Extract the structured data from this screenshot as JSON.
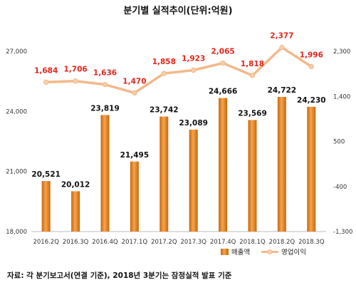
{
  "chart_data": {
    "type": "bar+line",
    "title": "분기별 실적추이(단위:억원)",
    "categories": [
      "2016.2Q",
      "2016.3Q",
      "2016.4Q",
      "2017.1Q",
      "2017.2Q",
      "2017.3Q",
      "2017.4Q",
      "2018.1Q",
      "2018.2Q",
      "2018.3Q"
    ],
    "series": [
      {
        "name": "매출액",
        "type": "bar",
        "axis": "left",
        "color": "#e8861e",
        "values": [
          20521,
          20012,
          23819,
          21495,
          23742,
          23089,
          24666,
          23569,
          24722,
          24230
        ],
        "labels": [
          "20,521",
          "20,012",
          "23,819",
          "21,495",
          "23,742",
          "23,089",
          "24,666",
          "23,569",
          "24,722",
          "24,230"
        ]
      },
      {
        "name": "영업이익",
        "type": "line",
        "axis": "right",
        "color": "#f2b98b",
        "label_color": "#e0251b",
        "values": [
          1684,
          1706,
          1636,
          1470,
          1858,
          1923,
          2065,
          1818,
          2377,
          1996
        ],
        "labels": [
          "1,684",
          "1,706",
          "1,636",
          "1,470",
          "1,858",
          "1,923",
          "2,065",
          "1,818",
          "2,377",
          "1,996"
        ]
      }
    ],
    "left_axis": {
      "min": 18000,
      "max": 27000,
      "ticks": [
        18000,
        21000,
        24000,
        27000
      ],
      "tick_labels": [
        "18,000",
        "21,000",
        "24,000",
        "27,000"
      ]
    },
    "right_axis": {
      "min": -1300,
      "max": 2300,
      "ticks": [
        -1300,
        -400,
        500,
        1400,
        2300
      ],
      "tick_labels": [
        "-1,300",
        "-400",
        "500",
        "1,400",
        "2,300"
      ]
    },
    "grid": false,
    "legend_position": "bottom-right",
    "source": "자료: 각 분기보고서(연결 기준), 2018년 3분기는 잠정실적 발표 기준"
  }
}
